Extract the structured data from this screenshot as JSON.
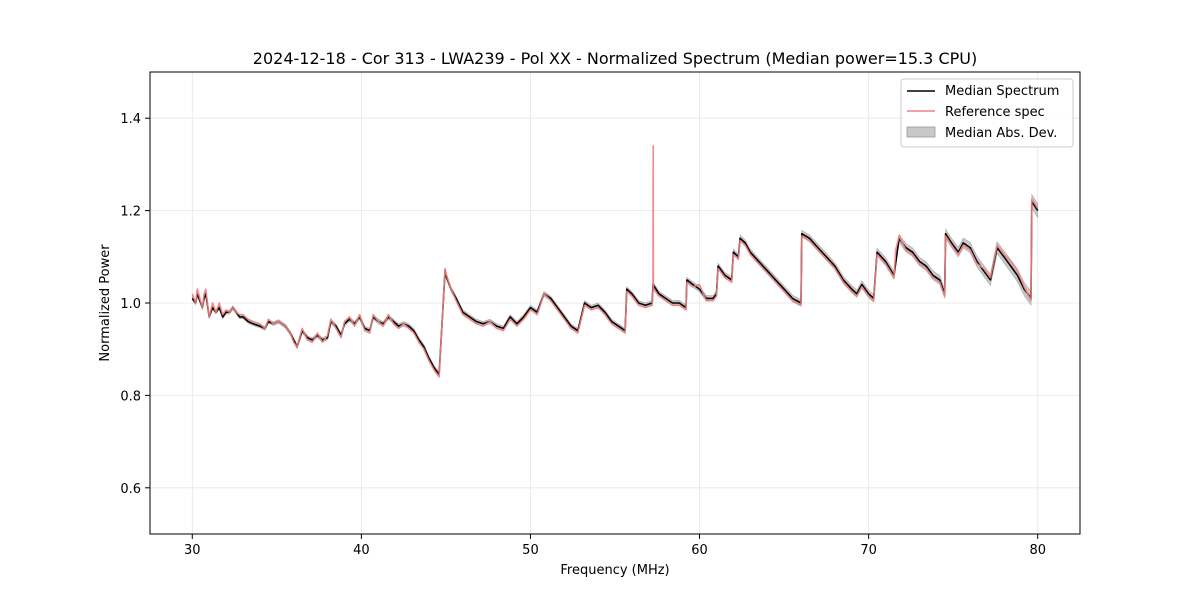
{
  "chart_data": {
    "type": "line",
    "title": "2024-12-18 - Cor 313 - LWA239 - Pol XX - Normalized Spectrum (Median power=15.3 CPU)",
    "xlabel": "Frequency (MHz)",
    "ylabel": "Normalized Power",
    "xlim": [
      27.5,
      82.5
    ],
    "ylim": [
      0.5,
      1.5
    ],
    "xticks": [
      30,
      40,
      50,
      60,
      70,
      80
    ],
    "xtick_labels": [
      "30",
      "40",
      "50",
      "60",
      "70",
      "80"
    ],
    "yticks": [
      0.6,
      0.8,
      1.0,
      1.2,
      1.4
    ],
    "ytick_labels": [
      "0.6",
      "0.8",
      "1.0",
      "1.2",
      "1.4"
    ],
    "grid": true,
    "legend_position": "top-right",
    "legend": [
      "Median Spectrum",
      "Reference spec",
      "Median Abs. Dev."
    ],
    "colors": {
      "median": "#000000",
      "reference": "#f08080",
      "mad": "#c8c8c8",
      "axis": "#000000",
      "grid": "#e6e6e6"
    },
    "series": [
      {
        "name": "Median Spectrum",
        "x": [
          30.0,
          30.2,
          30.3,
          30.6,
          30.7,
          30.8,
          31.0,
          31.2,
          31.4,
          31.6,
          31.8,
          32.0,
          32.2,
          32.4,
          32.6,
          32.8,
          33.0,
          33.3,
          33.6,
          34.0,
          34.3,
          34.5,
          34.8,
          35.1,
          35.5,
          35.8,
          36.0,
          36.2,
          36.5,
          36.8,
          37.1,
          37.4,
          37.7,
          38.0,
          38.2,
          38.5,
          38.8,
          39.0,
          39.3,
          39.6,
          39.9,
          40.2,
          40.5,
          40.7,
          41.0,
          41.3,
          41.6,
          41.9,
          42.2,
          42.5,
          42.8,
          43.1,
          43.4,
          43.7,
          44.0,
          44.3,
          44.6,
          44.95,
          45.0,
          45.3,
          45.6,
          46.0,
          46.4,
          46.8,
          47.2,
          47.6,
          48.0,
          48.4,
          48.8,
          49.2,
          49.6,
          50.0,
          50.4,
          50.8,
          51.2,
          51.6,
          52.0,
          52.4,
          52.8,
          53.2,
          53.6,
          54.0,
          54.4,
          54.8,
          55.2,
          55.6,
          55.7,
          56.0,
          56.4,
          56.8,
          57.2,
          57.25,
          57.6,
          58.0,
          58.4,
          58.8,
          59.2,
          59.25,
          59.6,
          60.0,
          60.4,
          60.8,
          61.0,
          61.1,
          61.5,
          61.9,
          62.0,
          62.3,
          62.4,
          62.7,
          63.0,
          63.5,
          64.0,
          64.5,
          65.0,
          65.5,
          66.0,
          66.05,
          66.5,
          67.0,
          67.5,
          68.0,
          68.5,
          69.0,
          69.3,
          69.6,
          70.0,
          70.3,
          70.5,
          71.0,
          71.5,
          71.8,
          72.2,
          72.6,
          73.0,
          73.4,
          73.8,
          74.2,
          74.5,
          74.55,
          74.9,
          75.3,
          75.6,
          76.0,
          76.4,
          76.8,
          77.2,
          77.6,
          78.0,
          78.4,
          78.8,
          79.2,
          79.6,
          79.65,
          80.0
        ],
        "values": [
          1.01,
          1.0,
          1.02,
          0.99,
          1.01,
          1.02,
          0.97,
          0.99,
          0.98,
          0.99,
          0.97,
          0.98,
          0.98,
          0.99,
          0.98,
          0.97,
          0.97,
          0.96,
          0.955,
          0.95,
          0.945,
          0.96,
          0.955,
          0.96,
          0.95,
          0.935,
          0.92,
          0.905,
          0.94,
          0.925,
          0.92,
          0.93,
          0.92,
          0.925,
          0.96,
          0.95,
          0.93,
          0.955,
          0.965,
          0.955,
          0.97,
          0.945,
          0.94,
          0.97,
          0.96,
          0.955,
          0.97,
          0.96,
          0.95,
          0.955,
          0.95,
          0.94,
          0.92,
          0.905,
          0.88,
          0.86,
          0.845,
          1.07,
          1.06,
          1.03,
          1.01,
          0.98,
          0.97,
          0.96,
          0.955,
          0.96,
          0.95,
          0.945,
          0.97,
          0.955,
          0.97,
          0.99,
          0.98,
          1.02,
          1.01,
          0.99,
          0.97,
          0.95,
          0.94,
          1.0,
          0.99,
          0.995,
          0.98,
          0.96,
          0.95,
          0.94,
          1.03,
          1.02,
          1.0,
          0.995,
          1.0,
          1.04,
          1.02,
          1.01,
          1.0,
          1.0,
          0.99,
          1.05,
          1.04,
          1.03,
          1.01,
          1.01,
          1.02,
          1.08,
          1.06,
          1.05,
          1.11,
          1.1,
          1.14,
          1.13,
          1.11,
          1.09,
          1.07,
          1.05,
          1.03,
          1.01,
          1.0,
          1.15,
          1.14,
          1.12,
          1.1,
          1.08,
          1.05,
          1.03,
          1.02,
          1.04,
          1.02,
          1.01,
          1.11,
          1.09,
          1.06,
          1.14,
          1.12,
          1.11,
          1.09,
          1.08,
          1.06,
          1.05,
          1.02,
          1.15,
          1.13,
          1.11,
          1.13,
          1.12,
          1.09,
          1.07,
          1.05,
          1.12,
          1.1,
          1.08,
          1.06,
          1.03,
          1.01,
          1.22,
          1.2
        ]
      },
      {
        "name": "Reference spec",
        "x": [
          30.0,
          30.2,
          30.3,
          30.6,
          30.7,
          30.8,
          31.0,
          31.2,
          31.4,
          31.6,
          31.8,
          32.0,
          32.2,
          32.4,
          32.6,
          32.8,
          33.0,
          33.3,
          33.6,
          34.0,
          34.3,
          34.5,
          34.8,
          35.1,
          35.5,
          35.8,
          36.0,
          36.2,
          36.5,
          36.8,
          37.1,
          37.4,
          37.7,
          38.0,
          38.2,
          38.5,
          38.8,
          39.0,
          39.3,
          39.6,
          39.9,
          40.2,
          40.5,
          40.7,
          41.0,
          41.3,
          41.6,
          41.9,
          42.2,
          42.5,
          42.8,
          43.1,
          43.4,
          43.7,
          44.0,
          44.3,
          44.6,
          44.95,
          45.0,
          45.3,
          45.6,
          46.0,
          46.4,
          46.8,
          47.2,
          47.6,
          48.0,
          48.4,
          48.8,
          49.2,
          49.6,
          50.0,
          50.4,
          50.8,
          51.2,
          51.6,
          52.0,
          52.4,
          52.8,
          53.2,
          53.6,
          54.0,
          54.4,
          54.8,
          55.2,
          55.6,
          55.7,
          56.0,
          56.4,
          56.8,
          57.2,
          57.25,
          57.26,
          57.27,
          57.6,
          58.0,
          58.4,
          58.8,
          59.2,
          59.25,
          59.6,
          60.0,
          60.4,
          60.8,
          61.0,
          61.1,
          61.5,
          61.9,
          62.0,
          62.3,
          62.4,
          62.7,
          63.0,
          63.5,
          64.0,
          64.5,
          65.0,
          65.5,
          66.0,
          66.05,
          66.5,
          67.0,
          67.5,
          68.0,
          68.5,
          69.0,
          69.3,
          69.6,
          70.0,
          70.3,
          70.5,
          71.0,
          71.5,
          71.6,
          71.8,
          72.2,
          72.6,
          73.0,
          73.4,
          73.8,
          74.2,
          74.5,
          74.55,
          74.9,
          75.3,
          75.6,
          76.0,
          76.4,
          76.8,
          77.2,
          77.6,
          78.0,
          78.4,
          78.8,
          79.2,
          79.6,
          79.65,
          80.0
        ],
        "values": [
          1.02,
          1.0,
          1.03,
          0.99,
          1.02,
          1.03,
          0.97,
          1.0,
          0.98,
          1.0,
          0.975,
          0.985,
          0.98,
          0.99,
          0.98,
          0.975,
          0.975,
          0.965,
          0.96,
          0.955,
          0.945,
          0.965,
          0.955,
          0.96,
          0.95,
          0.935,
          0.915,
          0.905,
          0.945,
          0.92,
          0.915,
          0.935,
          0.915,
          0.93,
          0.965,
          0.945,
          0.925,
          0.96,
          0.97,
          0.95,
          0.975,
          0.94,
          0.935,
          0.975,
          0.96,
          0.95,
          0.975,
          0.955,
          0.945,
          0.955,
          0.945,
          0.935,
          0.915,
          0.9,
          0.875,
          0.855,
          0.84,
          1.075,
          1.065,
          1.03,
          1.005,
          0.975,
          0.965,
          0.955,
          0.95,
          0.96,
          0.945,
          0.94,
          0.965,
          0.95,
          0.965,
          0.985,
          0.975,
          1.02,
          1.005,
          0.985,
          0.965,
          0.945,
          0.935,
          0.995,
          0.985,
          0.99,
          0.975,
          0.955,
          0.945,
          0.935,
          1.025,
          1.015,
          0.995,
          0.99,
          0.995,
          1.03,
          1.34,
          1.03,
          1.015,
          1.005,
          0.995,
          0.995,
          0.985,
          1.045,
          1.035,
          1.04,
          1.005,
          1.005,
          1.015,
          1.075,
          1.055,
          1.045,
          1.105,
          1.095,
          1.135,
          1.125,
          1.105,
          1.085,
          1.065,
          1.045,
          1.025,
          1.005,
          0.995,
          1.145,
          1.135,
          1.115,
          1.095,
          1.075,
          1.045,
          1.025,
          1.015,
          1.035,
          1.015,
          1.005,
          1.105,
          1.085,
          1.055,
          1.115,
          1.145,
          1.115,
          1.105,
          1.085,
          1.075,
          1.055,
          1.045,
          1.015,
          1.145,
          1.125,
          1.105,
          1.125,
          1.115,
          1.085,
          1.075,
          1.055,
          1.125,
          1.105,
          1.09,
          1.07,
          1.035,
          1.005,
          1.225,
          1.205
        ]
      },
      {
        "name": "Median Abs. Dev.",
        "x": [
          30.0,
          35.0,
          40.0,
          45.0,
          50.0,
          55.0,
          60.0,
          65.0,
          70.0,
          75.0,
          80.0
        ],
        "values": [
          0.004,
          0.004,
          0.005,
          0.005,
          0.005,
          0.005,
          0.006,
          0.007,
          0.008,
          0.01,
          0.015
        ]
      }
    ]
  }
}
